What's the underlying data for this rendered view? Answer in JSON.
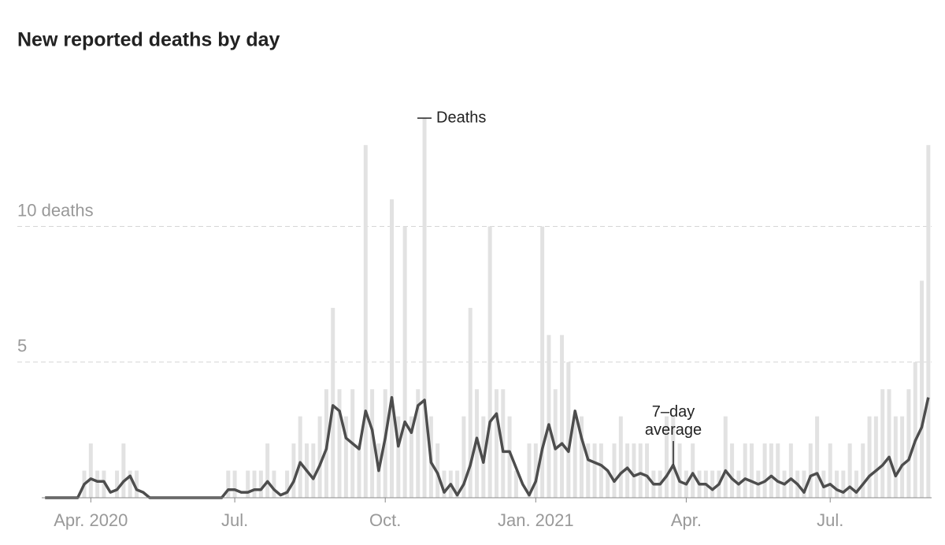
{
  "chart_data": {
    "type": "bar",
    "title": "New reported deaths by day",
    "categories": [
      null,
      null,
      null,
      null,
      null,
      null,
      null,
      "Apr. 2020",
      null,
      null,
      null,
      null,
      null,
      null,
      null,
      null,
      null,
      null,
      null,
      null,
      null,
      null,
      null,
      null,
      null,
      null,
      null,
      null,
      null,
      "Jul.",
      null,
      null,
      null,
      null,
      null,
      null,
      null,
      null,
      null,
      null,
      null,
      null,
      null,
      null,
      null,
      null,
      null,
      null,
      null,
      null,
      null,
      null,
      "Oct.",
      null,
      null,
      null,
      null,
      null,
      null,
      null,
      null,
      null,
      null,
      null,
      null,
      null,
      null,
      null,
      null,
      null,
      null,
      null,
      null,
      null,
      null,
      "Jan. 2021",
      null,
      null,
      null,
      null,
      null,
      null,
      null,
      null,
      null,
      null,
      null,
      null,
      null,
      null,
      null,
      null,
      null,
      null,
      null,
      null,
      null,
      null,
      "Apr.",
      null,
      null,
      null,
      null,
      null,
      null,
      null,
      null,
      null,
      null,
      null,
      null,
      null,
      null,
      null,
      null,
      null,
      null,
      null,
      null,
      null,
      "Jul.",
      null,
      null,
      null,
      null,
      null,
      null,
      null,
      null,
      null,
      null,
      null,
      null,
      null,
      null,
      null
    ],
    "series": [
      {
        "name": "Deaths",
        "type": "bar",
        "color": "#e2e2e2",
        "values": [
          0,
          0,
          0,
          0,
          0,
          0,
          1,
          2,
          1,
          1,
          0,
          1,
          2,
          1,
          1,
          0,
          0,
          0,
          0,
          0,
          0,
          0,
          0,
          0,
          0,
          0,
          0,
          0,
          1,
          1,
          0,
          1,
          1,
          1,
          2,
          1,
          0,
          1,
          2,
          3,
          2,
          2,
          3,
          4,
          7,
          4,
          3,
          4,
          2,
          13,
          4,
          2,
          4,
          11,
          3,
          10,
          3,
          4,
          14,
          3,
          2,
          1,
          1,
          1,
          3,
          7,
          4,
          3,
          10,
          4,
          4,
          3,
          1,
          0,
          2,
          2,
          10,
          6,
          4,
          6,
          5,
          3,
          3,
          2,
          2,
          2,
          1,
          2,
          3,
          2,
          2,
          2,
          2,
          1,
          1,
          3,
          3,
          2,
          1,
          2,
          1,
          1,
          1,
          1,
          3,
          2,
          1,
          2,
          2,
          1,
          2,
          2,
          2,
          1,
          2,
          1,
          1,
          2,
          3,
          1,
          2,
          1,
          1,
          2,
          1,
          2,
          3,
          3,
          4,
          4,
          3,
          3,
          4,
          5,
          8,
          13
        ]
      },
      {
        "name": "7–day average",
        "type": "line",
        "color": "#4d4d4d",
        "values": [
          0,
          0,
          0,
          0,
          0,
          0,
          0.5,
          0.7,
          0.6,
          0.6,
          0.2,
          0.3,
          0.6,
          0.8,
          0.3,
          0.2,
          0,
          0,
          0,
          0,
          0,
          0,
          0,
          0,
          0,
          0,
          0,
          0,
          0.3,
          0.3,
          0.2,
          0.2,
          0.3,
          0.3,
          0.6,
          0.3,
          0.1,
          0.2,
          0.6,
          1.3,
          1.0,
          0.7,
          1.2,
          1.8,
          3.4,
          3.2,
          2.2,
          2.0,
          1.8,
          3.2,
          2.5,
          1.0,
          2.2,
          3.7,
          1.9,
          2.8,
          2.4,
          3.4,
          3.6,
          1.3,
          0.9,
          0.2,
          0.5,
          0.1,
          0.5,
          1.2,
          2.2,
          1.3,
          2.8,
          3.1,
          1.7,
          1.7,
          1.1,
          0.5,
          0.1,
          0.6,
          1.8,
          2.7,
          1.8,
          2.0,
          1.7,
          3.2,
          2.2,
          1.4,
          1.3,
          1.2,
          1.0,
          0.6,
          0.9,
          1.1,
          0.8,
          0.9,
          0.8,
          0.5,
          0.5,
          0.8,
          1.2,
          0.6,
          0.5,
          0.9,
          0.5,
          0.5,
          0.3,
          0.5,
          1.0,
          0.7,
          0.5,
          0.7,
          0.6,
          0.5,
          0.6,
          0.8,
          0.6,
          0.5,
          0.7,
          0.5,
          0.2,
          0.8,
          0.9,
          0.4,
          0.5,
          0.3,
          0.2,
          0.4,
          0.2,
          0.5,
          0.8,
          1.0,
          1.2,
          1.5,
          0.8,
          1.2,
          1.4,
          2.1,
          2.6,
          3.7
        ]
      }
    ],
    "ylim": [
      0,
      15.3
    ],
    "yticks": [
      5,
      {
        "value": 10,
        "label": "10 deaths"
      }
    ],
    "grid": true
  }
}
